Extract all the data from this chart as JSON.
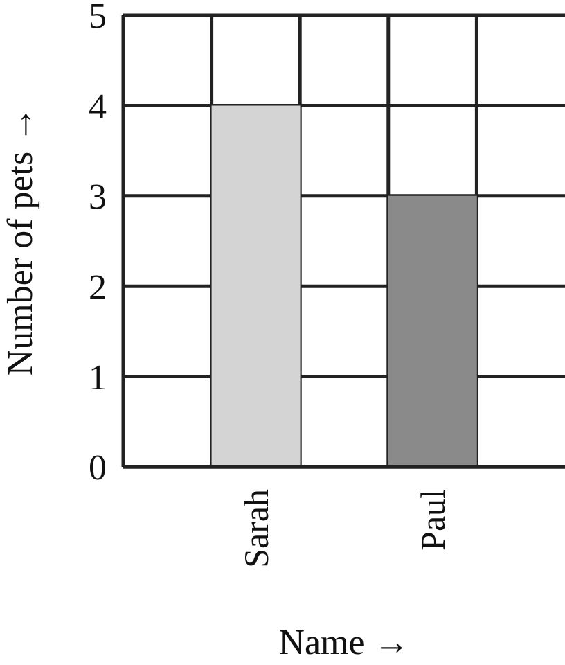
{
  "chart_data": {
    "type": "bar",
    "xlabel": "Name →",
    "ylabel": "Number of pets →",
    "categories": [
      null,
      "Sarah",
      null,
      "Paul",
      null
    ],
    "values": [
      null,
      4,
      null,
      3,
      null
    ],
    "colors": [
      null,
      "#d4d4d4",
      null,
      "#8a8a8a",
      null
    ],
    "ylim": [
      0,
      5
    ],
    "yticks": [
      0,
      1,
      2,
      3,
      4,
      5
    ],
    "grid": true,
    "legend": false
  }
}
